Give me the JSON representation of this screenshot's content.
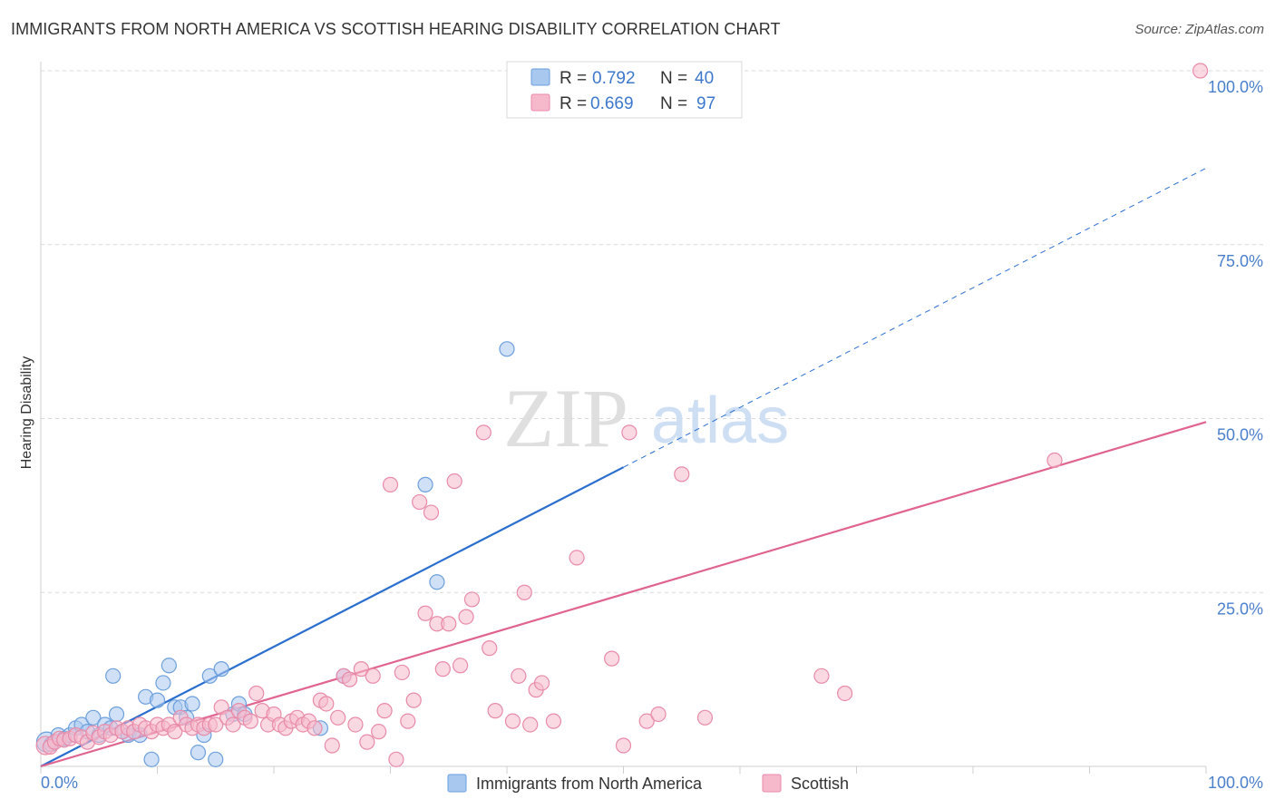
{
  "title": "IMMIGRANTS FROM NORTH AMERICA VS SCOTTISH HEARING DISABILITY CORRELATION CHART",
  "source": "Source: ZipAtlas.com",
  "watermark": {
    "zip": "ZIP",
    "atlas": "atlas"
  },
  "colors": {
    "blue_fill": "#a9c8f0",
    "blue_stroke": "#6c9fdc",
    "blue_line": "#2a6fcf",
    "pink_fill": "#f6b9cc",
    "pink_stroke": "#e88aa8",
    "pink_line": "#e0648e",
    "tick_label": "#4a7fcc",
    "grid": "#d9d9d9"
  },
  "chart_data": {
    "type": "scatter",
    "title": "IMMIGRANTS FROM NORTH AMERICA VS SCOTTISH HEARING DISABILITY CORRELATION CHART",
    "xlabel": "",
    "ylabel": "Hearing Disability",
    "xlim": [
      0,
      100
    ],
    "ylim": [
      0,
      100
    ],
    "x_tick_labels": [
      "0.0%",
      "100.0%"
    ],
    "y_tick_labels": [
      {
        "value": 100,
        "label": "100.0%"
      },
      {
        "value": 75,
        "label": "75.0%"
      },
      {
        "value": 50,
        "label": "50.0%"
      },
      {
        "value": 25,
        "label": "25.0%"
      }
    ],
    "grid": true,
    "legend_placement": "top-center",
    "legend": [
      {
        "r_label": "R =",
        "r_value": "0.792",
        "n_label": "N =",
        "n_value": "40"
      },
      {
        "r_label": "R =",
        "r_value": "0.669",
        "n_label": "N =",
        "n_value": "97"
      }
    ],
    "series": [
      {
        "name": "Immigrants from North America",
        "color": "blue",
        "trend": {
          "x0": 0,
          "y0": 0,
          "x1": 100,
          "y1": 86,
          "solid_until_x": 50
        },
        "points": [
          [
            0.5,
            3.5
          ],
          [
            0.9,
            3.2
          ],
          [
            1.5,
            4.5
          ],
          [
            2,
            4
          ],
          [
            2.5,
            4.5
          ],
          [
            3,
            5.5
          ],
          [
            3.5,
            6
          ],
          [
            4,
            5
          ],
          [
            4.5,
            7
          ],
          [
            5,
            4.5
          ],
          [
            5.5,
            6
          ],
          [
            6,
            5.5
          ],
          [
            6.2,
            13
          ],
          [
            6.5,
            7.5
          ],
          [
            7,
            5
          ],
          [
            7.5,
            4.5
          ],
          [
            8,
            5
          ],
          [
            8.5,
            4.5
          ],
          [
            9,
            10
          ],
          [
            9.5,
            1
          ],
          [
            10,
            9.5
          ],
          [
            10.5,
            12
          ],
          [
            11,
            14.5
          ],
          [
            11.5,
            8.5
          ],
          [
            12,
            8.5
          ],
          [
            12.5,
            7
          ],
          [
            13,
            9
          ],
          [
            13.5,
            2
          ],
          [
            14,
            4.5
          ],
          [
            14.5,
            13
          ],
          [
            15,
            1
          ],
          [
            15.5,
            14
          ],
          [
            16.5,
            7.5
          ],
          [
            17,
            9
          ],
          [
            17.5,
            7.5
          ],
          [
            24,
            5.5
          ],
          [
            26,
            13
          ],
          [
            33,
            40.5
          ],
          [
            34,
            26.5
          ],
          [
            40,
            60
          ]
        ]
      },
      {
        "name": "Scottish",
        "color": "pink",
        "trend": {
          "x0": 0,
          "y0": 0,
          "x1": 100,
          "y1": 49.5
        },
        "points": [
          [
            0.4,
            3
          ],
          [
            0.8,
            2.8
          ],
          [
            1.2,
            3.5
          ],
          [
            1.6,
            4
          ],
          [
            2,
            3.8
          ],
          [
            2.5,
            4
          ],
          [
            3,
            4.5
          ],
          [
            3.5,
            4.2
          ],
          [
            4,
            3.5
          ],
          [
            4.5,
            4.8
          ],
          [
            5,
            4.2
          ],
          [
            5.5,
            5
          ],
          [
            6,
            4.5
          ],
          [
            6.5,
            5.5
          ],
          [
            7,
            5
          ],
          [
            7.5,
            5.5
          ],
          [
            8,
            5
          ],
          [
            8.5,
            6
          ],
          [
            9,
            5.5
          ],
          [
            9.5,
            5
          ],
          [
            10,
            6
          ],
          [
            10.5,
            5.5
          ],
          [
            11,
            6
          ],
          [
            11.5,
            5
          ],
          [
            12,
            7
          ],
          [
            12.5,
            6
          ],
          [
            13,
            5.5
          ],
          [
            13.5,
            6
          ],
          [
            14,
            5.5
          ],
          [
            14.5,
            6
          ],
          [
            15,
            6
          ],
          [
            15.5,
            8.5
          ],
          [
            16,
            7
          ],
          [
            16.5,
            6
          ],
          [
            17,
            8
          ],
          [
            17.5,
            7
          ],
          [
            18,
            6.5
          ],
          [
            18.5,
            10.5
          ],
          [
            19,
            8
          ],
          [
            19.5,
            6
          ],
          [
            20,
            7.5
          ],
          [
            20.5,
            6
          ],
          [
            21,
            5.5
          ],
          [
            21.5,
            6.5
          ],
          [
            22,
            7
          ],
          [
            22.5,
            6
          ],
          [
            23,
            6.5
          ],
          [
            23.5,
            5.5
          ],
          [
            24,
            9.5
          ],
          [
            24.5,
            9
          ],
          [
            25,
            3
          ],
          [
            25.5,
            7
          ],
          [
            26,
            13
          ],
          [
            26.5,
            12.5
          ],
          [
            27,
            6
          ],
          [
            27.5,
            14
          ],
          [
            28,
            3.5
          ],
          [
            28.5,
            13
          ],
          [
            29,
            5
          ],
          [
            29.5,
            8
          ],
          [
            30,
            40.5
          ],
          [
            30.5,
            1
          ],
          [
            31,
            13.5
          ],
          [
            31.5,
            6.5
          ],
          [
            32,
            9.5
          ],
          [
            32.5,
            38
          ],
          [
            33,
            22
          ],
          [
            33.5,
            36.5
          ],
          [
            34,
            20.5
          ],
          [
            34.5,
            14
          ],
          [
            35,
            20.5
          ],
          [
            35.5,
            41
          ],
          [
            36,
            14.5
          ],
          [
            36.5,
            21.5
          ],
          [
            37,
            24
          ],
          [
            38,
            48
          ],
          [
            38.5,
            17
          ],
          [
            39,
            8
          ],
          [
            40.5,
            6.5
          ],
          [
            41,
            13
          ],
          [
            41.5,
            25
          ],
          [
            42,
            6
          ],
          [
            42.5,
            11
          ],
          [
            43,
            12
          ],
          [
            44,
            6.5
          ],
          [
            46,
            30
          ],
          [
            49,
            15.5
          ],
          [
            50,
            3
          ],
          [
            50.5,
            48
          ],
          [
            52,
            6.5
          ],
          [
            53,
            7.5
          ],
          [
            55,
            42
          ],
          [
            57,
            7
          ],
          [
            67,
            13
          ],
          [
            69,
            10.5
          ],
          [
            87,
            44
          ],
          [
            99.5,
            100
          ]
        ]
      }
    ],
    "series_labels": [
      "Immigrants from North America",
      "Scottish"
    ]
  }
}
